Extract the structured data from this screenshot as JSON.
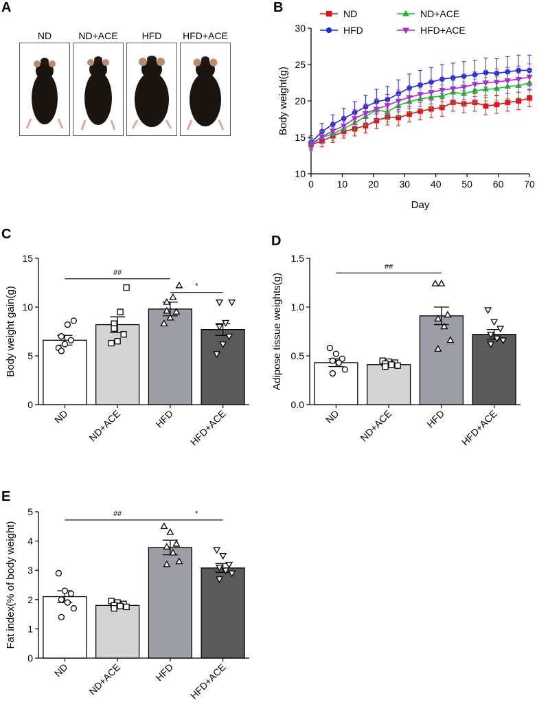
{
  "panels": {
    "A": {
      "letter": "A",
      "mice": [
        {
          "label": "ND"
        },
        {
          "label": "ND+ACE"
        },
        {
          "label": "HFD"
        },
        {
          "label": "HFD+ACE"
        }
      ]
    },
    "B": {
      "letter": "B"
    },
    "C": {
      "letter": "C"
    },
    "D": {
      "letter": "D"
    },
    "E": {
      "letter": "E"
    }
  },
  "chart_data": [
    {
      "id": "B",
      "type": "line",
      "title": "",
      "xlabel": "Day",
      "ylabel": "Body weight(g)",
      "xlim": [
        0,
        70
      ],
      "ylim": [
        10,
        30
      ],
      "xticks": [
        0,
        10,
        20,
        30,
        40,
        50,
        60,
        70
      ],
      "yticks": [
        10,
        15,
        20,
        25,
        30
      ],
      "legend": "top",
      "x": [
        0,
        3.5,
        7,
        10.5,
        14,
        17.5,
        21,
        24.5,
        28,
        31.5,
        35,
        38.5,
        42,
        45.5,
        49,
        52.5,
        56,
        59.5,
        63,
        66.5,
        70
      ],
      "series": [
        {
          "name": "ND",
          "color": "#e8101a",
          "marker": "square",
          "values": [
            14.0,
            14.5,
            15.2,
            15.8,
            16.2,
            16.6,
            17.3,
            17.8,
            17.7,
            18.2,
            18.6,
            18.9,
            19.1,
            19.8,
            19.6,
            19.8,
            19.3,
            19.5,
            19.8,
            20.0,
            20.4
          ],
          "errors": [
            0.8,
            0.8,
            0.9,
            0.9,
            1.0,
            1.0,
            1.1,
            1.1,
            1.1,
            1.1,
            1.2,
            1.2,
            1.2,
            1.2,
            1.2,
            1.2,
            1.2,
            1.2,
            1.2,
            1.2,
            1.2
          ]
        },
        {
          "name": "HFD",
          "color": "#1a2be8",
          "marker": "circle",
          "values": [
            14.3,
            15.8,
            16.8,
            17.6,
            18.4,
            19.2,
            19.9,
            20.2,
            21.0,
            21.8,
            22.2,
            22.6,
            23.0,
            23.2,
            23.4,
            23.6,
            23.9,
            23.8,
            24.0,
            24.2,
            24.2
          ],
          "errors": [
            0.9,
            1.1,
            1.3,
            1.4,
            1.5,
            1.6,
            1.7,
            1.8,
            1.9,
            1.9,
            2.0,
            2.0,
            2.0,
            2.0,
            2.0,
            2.0,
            2.0,
            2.0,
            2.1,
            2.1,
            2.1
          ]
        },
        {
          "name": "ND+ACE",
          "color": "#22b82a",
          "marker": "triangle",
          "values": [
            14.2,
            15.0,
            15.5,
            16.2,
            17.0,
            17.9,
            18.8,
            18.5,
            19.4,
            19.9,
            20.3,
            20.5,
            20.7,
            21.2,
            21.0,
            21.4,
            21.6,
            21.7,
            22.0,
            22.1,
            22.5
          ],
          "errors": [
            0.7,
            0.8,
            0.9,
            1.0,
            1.2,
            1.3,
            1.4,
            1.4,
            1.5,
            1.5,
            1.5,
            1.5,
            1.5,
            1.6,
            1.6,
            1.6,
            1.6,
            1.6,
            1.7,
            1.7,
            1.7
          ]
        },
        {
          "name": "HFD+ACE",
          "color": "#a32ed3",
          "marker": "triangle-down",
          "values": [
            14.0,
            15.1,
            15.9,
            16.6,
            17.6,
            18.3,
            18.9,
            19.4,
            20.0,
            20.5,
            20.9,
            21.2,
            21.5,
            21.7,
            21.9,
            22.3,
            22.5,
            22.6,
            22.8,
            23.0,
            23.3
          ],
          "errors": [
            0.8,
            0.9,
            1.0,
            1.1,
            1.2,
            1.3,
            1.4,
            1.5,
            1.5,
            1.5,
            1.6,
            1.6,
            1.6,
            1.7,
            1.7,
            1.7,
            1.7,
            1.8,
            1.8,
            1.8,
            1.8
          ]
        }
      ]
    },
    {
      "id": "C",
      "type": "bar",
      "ylabel": "Body weight gain(g)",
      "ylim": [
        0,
        15
      ],
      "yticks": [
        0,
        5,
        10,
        15
      ],
      "categories": [
        "ND",
        "ND+ACE",
        "HFD",
        "HFD+ACE"
      ],
      "values": [
        6.6,
        8.2,
        9.8,
        7.7
      ],
      "errors": [
        0.5,
        0.8,
        0.7,
        0.6
      ],
      "fills": [
        "#ffffff",
        "#d4d4d4",
        "#9d9da5",
        "#5a5a5a"
      ],
      "markers": [
        "circle",
        "square",
        "triangle",
        "triangle-down"
      ],
      "points": [
        [
          5.8,
          6.2,
          6.6,
          7.0,
          8.2,
          8.6,
          5.5
        ],
        [
          6.3,
          6.5,
          7.2,
          8.3,
          9.5,
          12.0,
          7.8
        ],
        [
          8.3,
          8.9,
          9.5,
          10.5,
          11.0,
          12.2,
          9.6
        ],
        [
          5.2,
          6.2,
          7.0,
          8.0,
          8.4,
          10.5,
          10.5
        ]
      ],
      "brackets": [
        {
          "from": 0,
          "to": 2,
          "y": 12.9,
          "label": "##"
        },
        {
          "from": 2,
          "to": 3,
          "y": 11.5,
          "label": "*"
        }
      ]
    },
    {
      "id": "D",
      "type": "bar",
      "ylabel": "Adipose tissue weights(g)",
      "ylim": [
        0,
        1.5
      ],
      "yticks": [
        0.0,
        0.5,
        1.0,
        1.5
      ],
      "categories": [
        "ND",
        "ND+ACE",
        "HFD",
        "HFD+ACE"
      ],
      "values": [
        0.43,
        0.41,
        0.91,
        0.72
      ],
      "errors": [
        0.04,
        0.01,
        0.09,
        0.05
      ],
      "fills": [
        "#ffffff",
        "#d4d4d4",
        "#9d9da5",
        "#5a5a5a"
      ],
      "markers": [
        "circle",
        "square",
        "triangle",
        "triangle-down"
      ],
      "points": [
        [
          0.58,
          0.52,
          0.47,
          0.45,
          0.43,
          0.36,
          0.32
        ],
        [
          0.45,
          0.44,
          0.43,
          0.42,
          0.41,
          0.4,
          0.39
        ],
        [
          1.24,
          1.24,
          0.92,
          0.88,
          0.8,
          0.66,
          0.57
        ],
        [
          0.97,
          0.85,
          0.78,
          0.72,
          0.68,
          0.66,
          0.62
        ]
      ],
      "brackets": [
        {
          "from": 0,
          "to": 2,
          "y": 1.35,
          "label": "##"
        }
      ]
    },
    {
      "id": "E",
      "type": "bar",
      "ylabel": "Fat index(% of body weight)",
      "ylim": [
        0,
        5
      ],
      "yticks": [
        0,
        1,
        2,
        3,
        4,
        5
      ],
      "categories": [
        "ND",
        "ND+ACE",
        "HFD",
        "HFD+ACE"
      ],
      "values": [
        2.1,
        1.8,
        3.78,
        3.08
      ],
      "errors": [
        0.2,
        0.05,
        0.25,
        0.15
      ],
      "fills": [
        "#ffffff",
        "#d4d4d4",
        "#9d9da5",
        "#5a5a5a"
      ],
      "markers": [
        "circle",
        "square",
        "triangle",
        "triangle-down"
      ],
      "points": [
        [
          2.9,
          2.3,
          2.2,
          2.0,
          1.9,
          1.7,
          1.4
        ],
        [
          1.95,
          1.9,
          1.85,
          1.8,
          1.78,
          1.75,
          1.7
        ],
        [
          4.5,
          4.3,
          3.9,
          3.8,
          3.6,
          3.3,
          3.2
        ],
        [
          3.7,
          3.5,
          3.2,
          3.1,
          3.0,
          2.9,
          2.7
        ]
      ],
      "brackets": [
        {
          "from": 0,
          "to": 2,
          "y": 4.72,
          "label": "##"
        },
        {
          "from": 2,
          "to": 3,
          "y": 4.72,
          "label": "*"
        }
      ]
    }
  ]
}
